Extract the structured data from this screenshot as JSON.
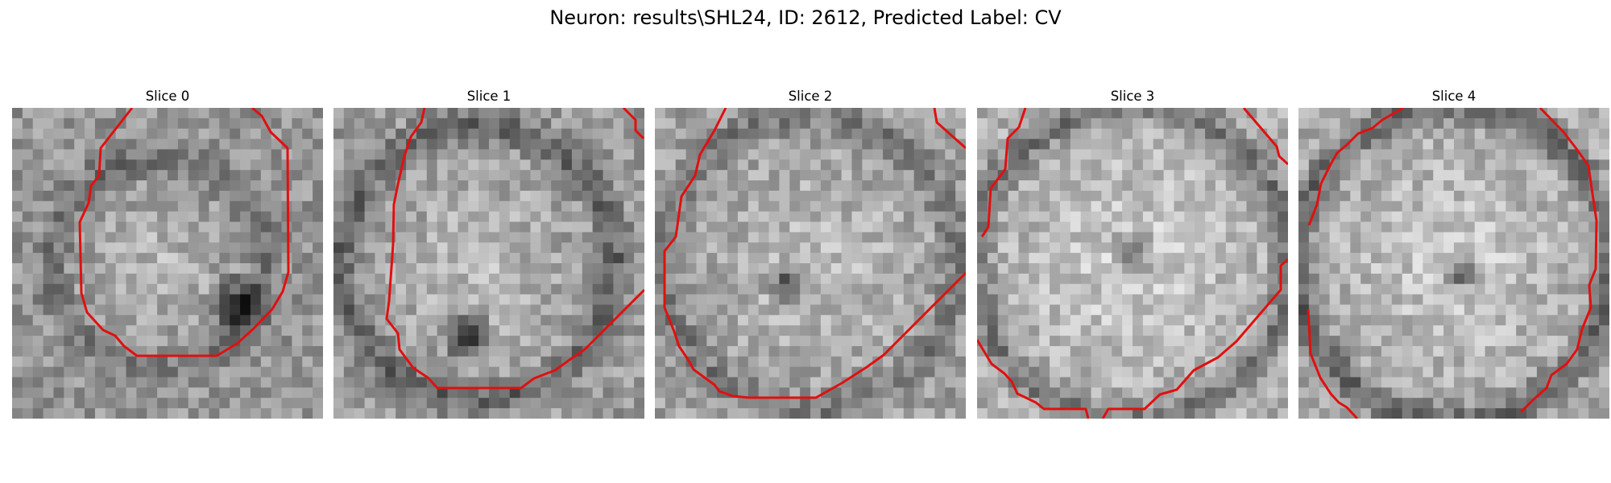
{
  "figure": {
    "title": "Neuron: results\\SHL24, ID: 2612, Predicted Label: CV"
  },
  "colors": {
    "contour": "#e01010",
    "background": "#ffffff"
  },
  "panels": [
    {
      "title": "Slice 0"
    },
    {
      "title": "Slice 1"
    },
    {
      "title": "Slice 2"
    },
    {
      "title": "Slice 3"
    },
    {
      "title": "Slice 4"
    }
  ]
}
